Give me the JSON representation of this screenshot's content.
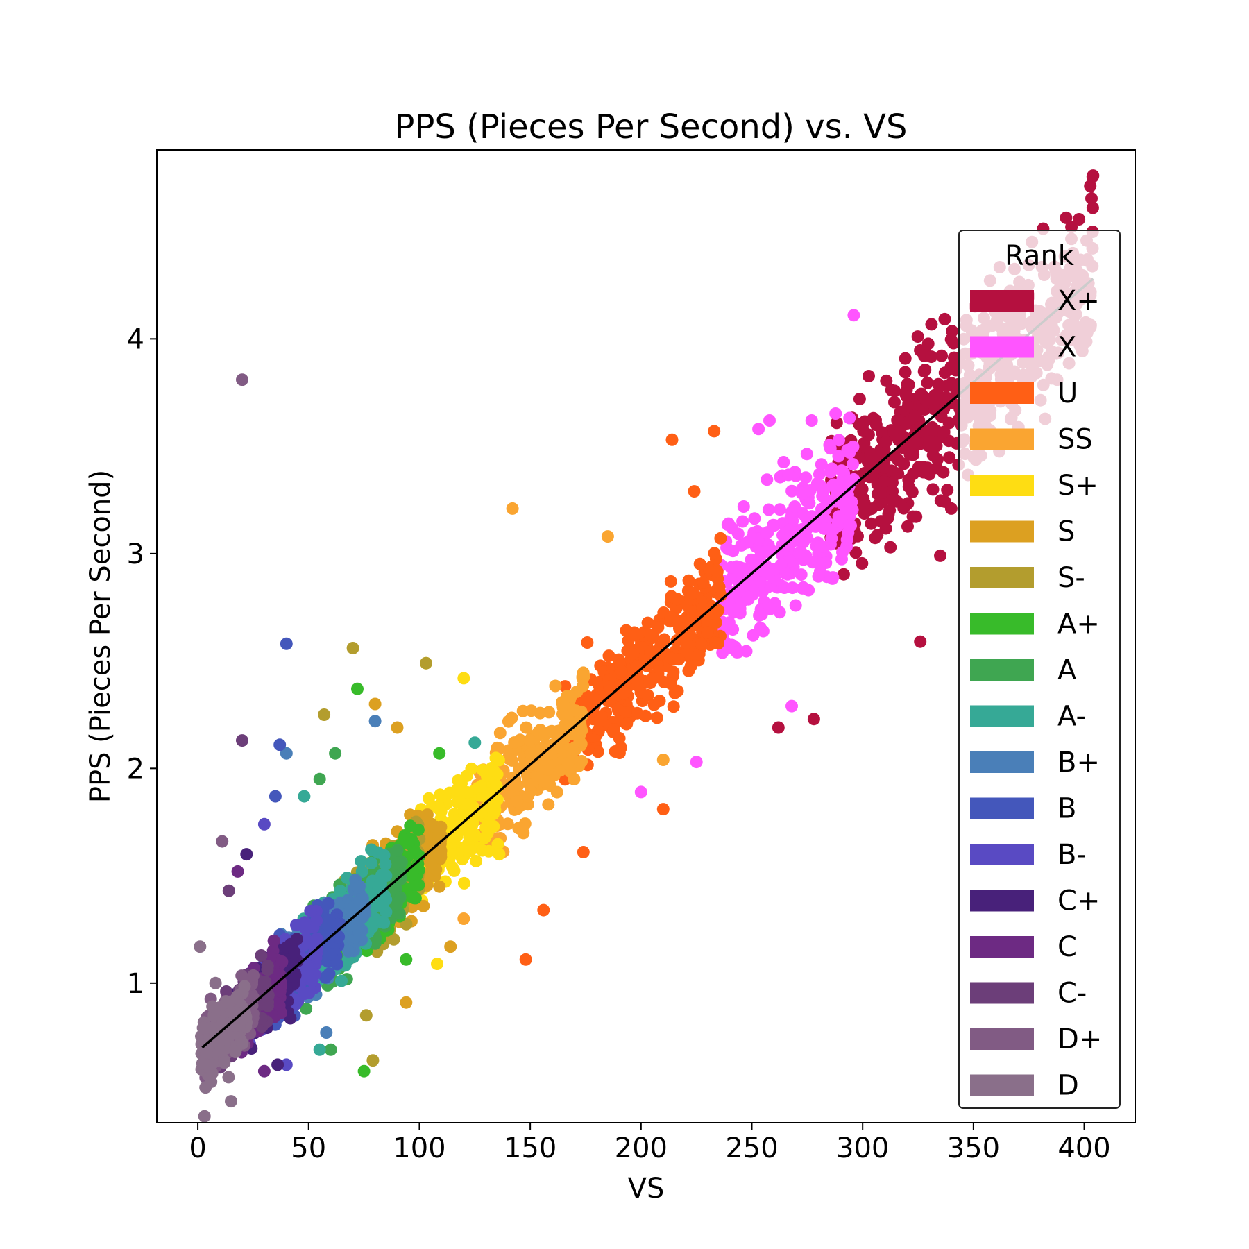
{
  "chart_data": {
    "type": "scatter",
    "title": "PPS (Pieces Per Second) vs. VS",
    "xlabel": "VS",
    "ylabel": "PPS (Pieces Per Second)",
    "xlim": [
      -18.5,
      423
    ],
    "ylim": [
      0.35,
      4.88
    ],
    "xticks": [
      0,
      50,
      100,
      150,
      200,
      250,
      300,
      350,
      400
    ],
    "yticks": [
      1,
      2,
      3,
      4
    ],
    "grid": false,
    "legend": {
      "title": "Rank",
      "position": "right"
    },
    "trendline": {
      "x": [
        2,
        404
      ],
      "y": [
        0.7,
        4.28
      ],
      "color": "#000000"
    },
    "series": [
      {
        "name": "X+",
        "color": "#b5103f",
        "vs_range": [
          285,
          404
        ],
        "points": [
          [
            404,
            4.76
          ],
          [
            341,
            3.98
          ],
          [
            330,
            3.52
          ],
          [
            320,
            3.73
          ],
          [
            350,
            3.45
          ],
          [
            326,
            2.59
          ],
          [
            335,
            2.99
          ],
          [
            262,
            2.19
          ],
          [
            278,
            2.23
          ],
          [
            340,
            3.21
          ],
          [
            305,
            3.4
          ]
        ]
      },
      {
        "name": "X",
        "color": "#ff55ff",
        "vs_range": [
          236,
          296
        ],
        "points": [
          [
            296,
            4.11
          ],
          [
            258,
            3.62
          ],
          [
            253,
            3.58
          ],
          [
            277,
            3.62
          ],
          [
            268,
            2.29
          ],
          [
            200,
            1.89
          ],
          [
            225,
            2.03
          ]
        ]
      },
      {
        "name": "U",
        "color": "#ff5f15",
        "vs_range": [
          165,
          236
        ],
        "points": [
          [
            214,
            3.53
          ],
          [
            233,
            3.57
          ],
          [
            224,
            3.29
          ],
          [
            148,
            1.11
          ],
          [
            156,
            1.34
          ],
          [
            174,
            1.61
          ],
          [
            210,
            1.81
          ]
        ]
      },
      {
        "name": "SS",
        "color": "#faa531",
        "vs_range": [
          126,
          175
        ],
        "points": [
          [
            142,
            3.21
          ],
          [
            185,
            3.08
          ],
          [
            210,
            2.04
          ],
          [
            120,
            1.3
          ]
        ]
      },
      {
        "name": "S+",
        "color": "#fedd13",
        "vs_range": [
          96,
          136
        ],
        "points": [
          [
            103,
            2.49
          ],
          [
            120,
            2.42
          ],
          [
            108,
            1.09
          ],
          [
            136,
            1.6
          ]
        ]
      },
      {
        "name": "S",
        "color": "#dca021",
        "vs_range": [
          76,
          110
        ],
        "points": [
          [
            80,
            2.3
          ],
          [
            90,
            2.19
          ],
          [
            94,
            0.91
          ],
          [
            114,
            1.17
          ]
        ]
      },
      {
        "name": "S-",
        "color": "#b39d2e",
        "vs_range": [
          64,
          100
        ],
        "points": [
          [
            70,
            2.56
          ],
          [
            103,
            2.49
          ],
          [
            57,
            2.25
          ],
          [
            79,
            0.64
          ],
          [
            76,
            0.85
          ]
        ]
      },
      {
        "name": "A+",
        "color": "#38bb2a",
        "vs_range": [
          60,
          100
        ],
        "points": [
          [
            72,
            2.37
          ],
          [
            75,
            0.59
          ],
          [
            94,
            1.11
          ],
          [
            109,
            2.07
          ]
        ]
      },
      {
        "name": "A",
        "color": "#3fa651",
        "vs_range": [
          48,
          92
        ],
        "points": [
          [
            55,
            1.95
          ],
          [
            62,
            2.07
          ],
          [
            60,
            0.69
          ]
        ]
      },
      {
        "name": "A-",
        "color": "#36a996",
        "vs_range": [
          40,
          85
        ],
        "points": [
          [
            125,
            2.12
          ],
          [
            48,
            1.87
          ],
          [
            55,
            0.69
          ]
        ]
      },
      {
        "name": "B+",
        "color": "#4a7fb8",
        "vs_range": [
          34,
          76
        ],
        "points": [
          [
            40,
            2.07
          ],
          [
            80,
            2.22
          ],
          [
            58,
            0.77
          ]
        ]
      },
      {
        "name": "B",
        "color": "#4457bb",
        "vs_range": [
          28,
          64
        ],
        "points": [
          [
            40,
            2.58
          ],
          [
            37,
            2.11
          ],
          [
            35,
            1.87
          ]
        ]
      },
      {
        "name": "B-",
        "color": "#594ac3",
        "vs_range": [
          22,
          55
        ],
        "points": [
          [
            30,
            1.74
          ],
          [
            40,
            0.62
          ]
        ]
      },
      {
        "name": "C+",
        "color": "#48217a",
        "vs_range": [
          16,
          45
        ],
        "points": [
          [
            22,
            1.6
          ],
          [
            36,
            0.62
          ]
        ]
      },
      {
        "name": "C",
        "color": "#6d2a83",
        "vs_range": [
          10,
          38
        ],
        "points": [
          [
            18,
            1.52
          ],
          [
            30,
            0.59
          ]
        ]
      },
      {
        "name": "C-",
        "color": "#6c3e79",
        "vs_range": [
          6,
          32
        ],
        "points": [
          [
            20,
            2.13
          ],
          [
            14,
            1.43
          ]
        ]
      },
      {
        "name": "D+",
        "color": "#815b84",
        "vs_range": [
          3,
          26
        ],
        "points": [
          [
            20,
            3.81
          ],
          [
            11,
            1.66
          ]
        ]
      },
      {
        "name": "D",
        "color": "#8a6f8a",
        "vs_range": [
          1,
          22
        ],
        "points": [
          [
            1,
            1.17
          ],
          [
            3,
            0.38
          ],
          [
            8,
            1.0
          ],
          [
            15,
            0.45
          ]
        ]
      }
    ]
  }
}
